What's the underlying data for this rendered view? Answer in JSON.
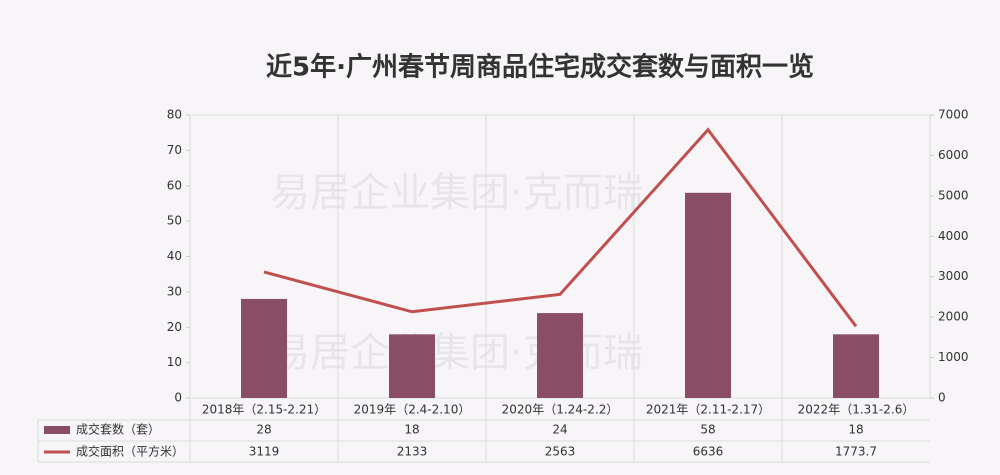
{
  "chart_data": {
    "type": "bar-line",
    "title": "近5年·广州春节周商品住宅成交套数与面积一览",
    "watermark": "易居企业集团·克而瑞",
    "categories": [
      "2018年（2.15-2.21）",
      "2019年（2.4-2.10）",
      "2020年（1.24-2.2）",
      "2021年（2.11-2.17）",
      "2022年（1.31-2.6）"
    ],
    "series": [
      {
        "name": "成交套数（套）",
        "color": "#8a4d66",
        "type": "bar",
        "values": [
          28,
          18,
          24,
          58,
          18
        ]
      },
      {
        "name": "成交面积（平方米）",
        "color": "#c0504d",
        "type": "line",
        "axis": "y2",
        "values": [
          3119,
          2133,
          2563,
          6636,
          1773.7
        ]
      }
    ],
    "ylim": [
      0,
      80
    ],
    "yticks": [
      0,
      10,
      20,
      30,
      40,
      50,
      60,
      70,
      80
    ],
    "y2lim": [
      0,
      7000
    ],
    "y2ticks": [
      0,
      1000,
      2000,
      3000,
      4000,
      5000,
      6000,
      7000
    ]
  }
}
